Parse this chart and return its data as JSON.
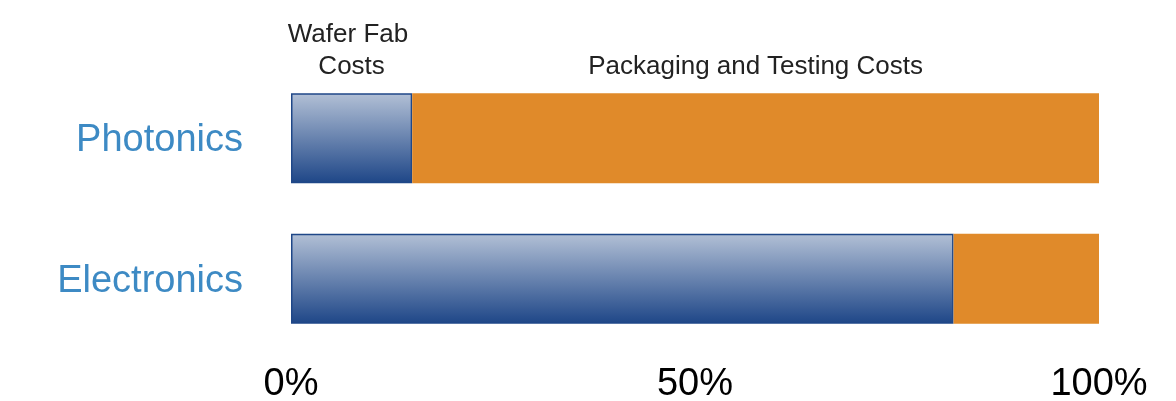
{
  "chart_data": {
    "type": "bar",
    "orientation": "horizontal",
    "stacked": true,
    "categories": [
      "Photonics",
      "Electronics"
    ],
    "series": [
      {
        "name": "Wafer Fab Costs",
        "color": "#1f4788",
        "values": [
          15,
          82
        ]
      },
      {
        "name": "Packaging and Testing Costs",
        "color": "#e08a2a",
        "values": [
          85,
          18
        ]
      }
    ],
    "xlim": [
      0,
      100
    ],
    "xticks": [
      {
        "value": 0,
        "label": "0%"
      },
      {
        "value": 50,
        "label": "50%"
      },
      {
        "value": 100,
        "label": "100%"
      }
    ],
    "grid": false,
    "legend": false
  }
}
